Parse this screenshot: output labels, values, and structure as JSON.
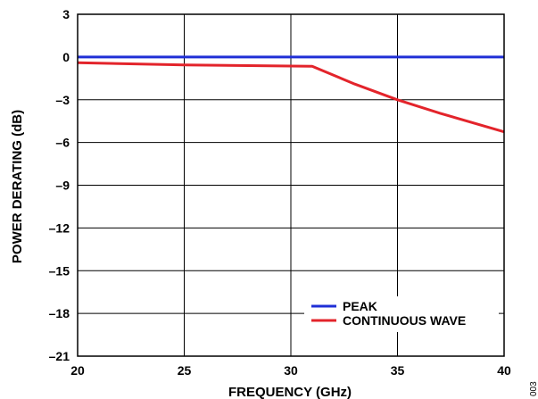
{
  "chart_data": {
    "type": "line",
    "title": "",
    "xlabel": "FREQUENCY (GHz)",
    "ylabel": "POWER DERATING (dB)",
    "xlim": [
      20,
      40
    ],
    "ylim": [
      -21,
      3
    ],
    "x_ticks": [
      "20",
      "25",
      "30",
      "35",
      "40"
    ],
    "y_ticks": [
      "3",
      "0",
      "–3",
      "–6",
      "–9",
      "–12",
      "–15",
      "–18",
      "–21"
    ],
    "grid": true,
    "legend_position": "bottom-right",
    "series": [
      {
        "name": "PEAK",
        "color": "#1f2fd6",
        "x": [
          20,
          40
        ],
        "y": [
          0,
          0
        ]
      },
      {
        "name": "CONTINUOUS WAVE",
        "color": "#e3242b",
        "x": [
          20,
          25,
          31,
          33,
          35,
          37,
          40
        ],
        "y": [
          -0.4,
          -0.55,
          -0.65,
          -1.9,
          -3.0,
          -3.95,
          -5.25
        ]
      }
    ]
  },
  "figure_id": "003"
}
